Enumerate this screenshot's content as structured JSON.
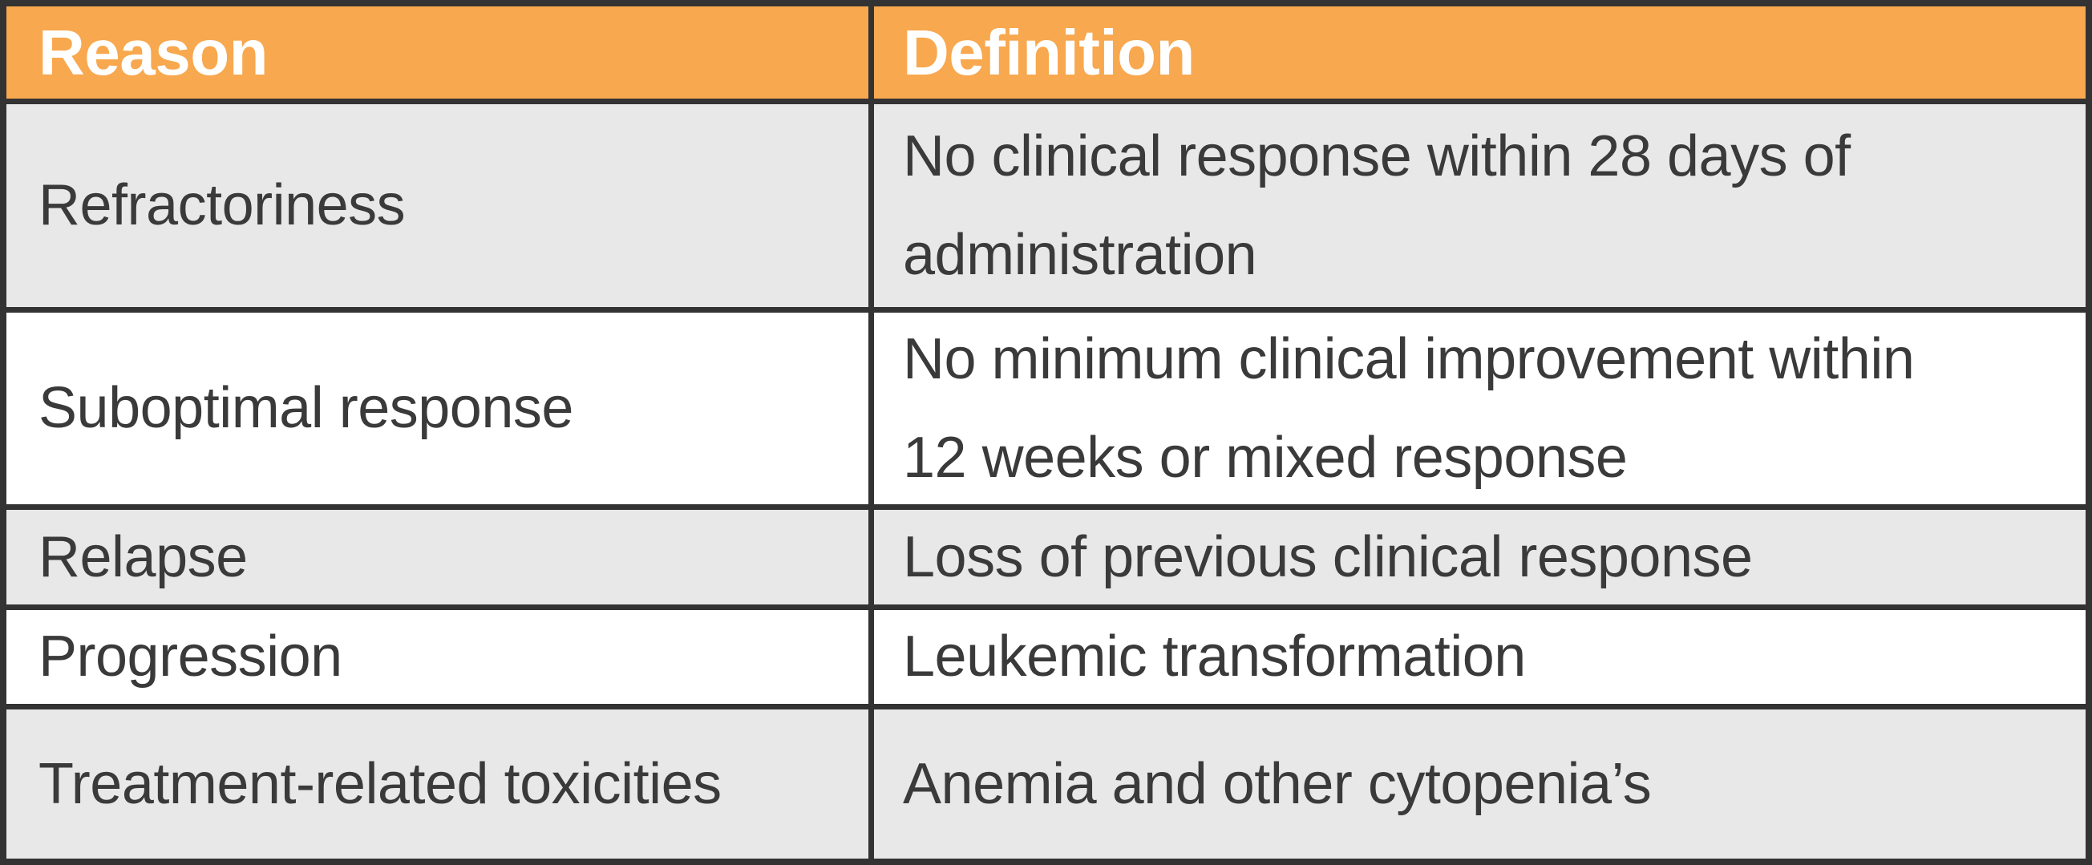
{
  "table": {
    "columns": [
      {
        "label": "Reason"
      },
      {
        "label": "Definition"
      }
    ],
    "rows": [
      {
        "reason": "Refractoriness",
        "definition": "No clinical response within 28 days of\nadministration"
      },
      {
        "reason": "Suboptimal response",
        "definition": "No minimum clinical improvement within\n12 weeks or mixed response"
      },
      {
        "reason": "Relapse",
        "definition": "Loss of previous clinical response"
      },
      {
        "reason": "Progression",
        "definition": "Leukemic transformation"
      },
      {
        "reason": "Treatment-related toxicities",
        "definition": "Anemia and other cytopenia’s"
      }
    ],
    "colors": {
      "header_bg": "#f8a84e",
      "header_text": "#ffffff",
      "row_alt_bg": "#e8e8e8",
      "row_bg": "#ffffff",
      "border": "#333333",
      "text": "#3a3a3a"
    }
  }
}
